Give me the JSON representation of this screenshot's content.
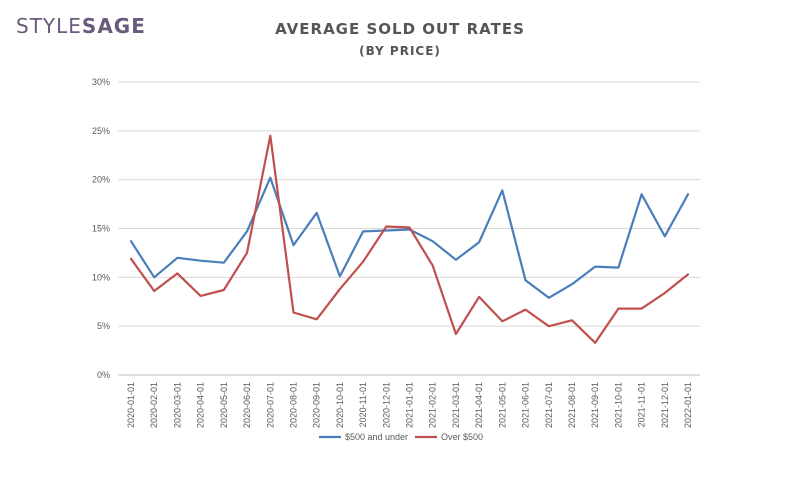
{
  "brand": {
    "part1": "STYLE",
    "part2": "SAGE"
  },
  "colors": {
    "series_blue": "#4a7ebb",
    "series_red": "#c0504d",
    "grid": "#d9d9d9",
    "brand": "#6b5a7c"
  },
  "chart_data": {
    "type": "line",
    "title": "AVERAGE SOLD OUT RATES",
    "subtitle": "(BY PRICE)",
    "xlabel": "",
    "ylabel": "",
    "ylim": [
      0,
      30
    ],
    "yticks": [
      "0%",
      "5%",
      "10%",
      "15%",
      "20%",
      "25%",
      "30%"
    ],
    "grid": true,
    "legend_position": "bottom",
    "categories": [
      "2020-01-01",
      "2020-02-01",
      "2020-03-01",
      "2020-04-01",
      "2020-05-01",
      "2020-06-01",
      "2020-07-01",
      "2020-08-01",
      "2020-09-01",
      "2020-10-01",
      "2020-11-01",
      "2020-12-01",
      "2021-01-01",
      "2021-02-01",
      "2021-03-01",
      "2021-04-01",
      "2021-05-01",
      "2021-06-01",
      "2021-07-01",
      "2021-08-01",
      "2021-09-01",
      "2021-10-01",
      "2021-11-01",
      "2021-12-01",
      "2022-01-01"
    ],
    "series": [
      {
        "name": "$500 and under",
        "color": "#4a7ebb",
        "values": [
          13.7,
          10.0,
          12.0,
          11.7,
          11.5,
          14.7,
          20.2,
          13.3,
          16.6,
          10.1,
          14.7,
          14.8,
          14.9,
          13.7,
          11.8,
          13.6,
          18.9,
          9.7,
          7.9,
          9.3,
          11.1,
          11.0,
          18.5,
          14.2,
          18.5
        ]
      },
      {
        "name": "Over $500",
        "color": "#c0504d",
        "values": [
          11.9,
          8.6,
          10.4,
          8.1,
          8.7,
          12.5,
          24.5,
          6.4,
          5.7,
          8.8,
          11.6,
          15.2,
          15.1,
          11.2,
          4.2,
          8.0,
          5.5,
          6.7,
          5.0,
          5.6,
          3.3,
          6.8,
          6.8,
          8.4,
          10.3
        ]
      }
    ]
  }
}
